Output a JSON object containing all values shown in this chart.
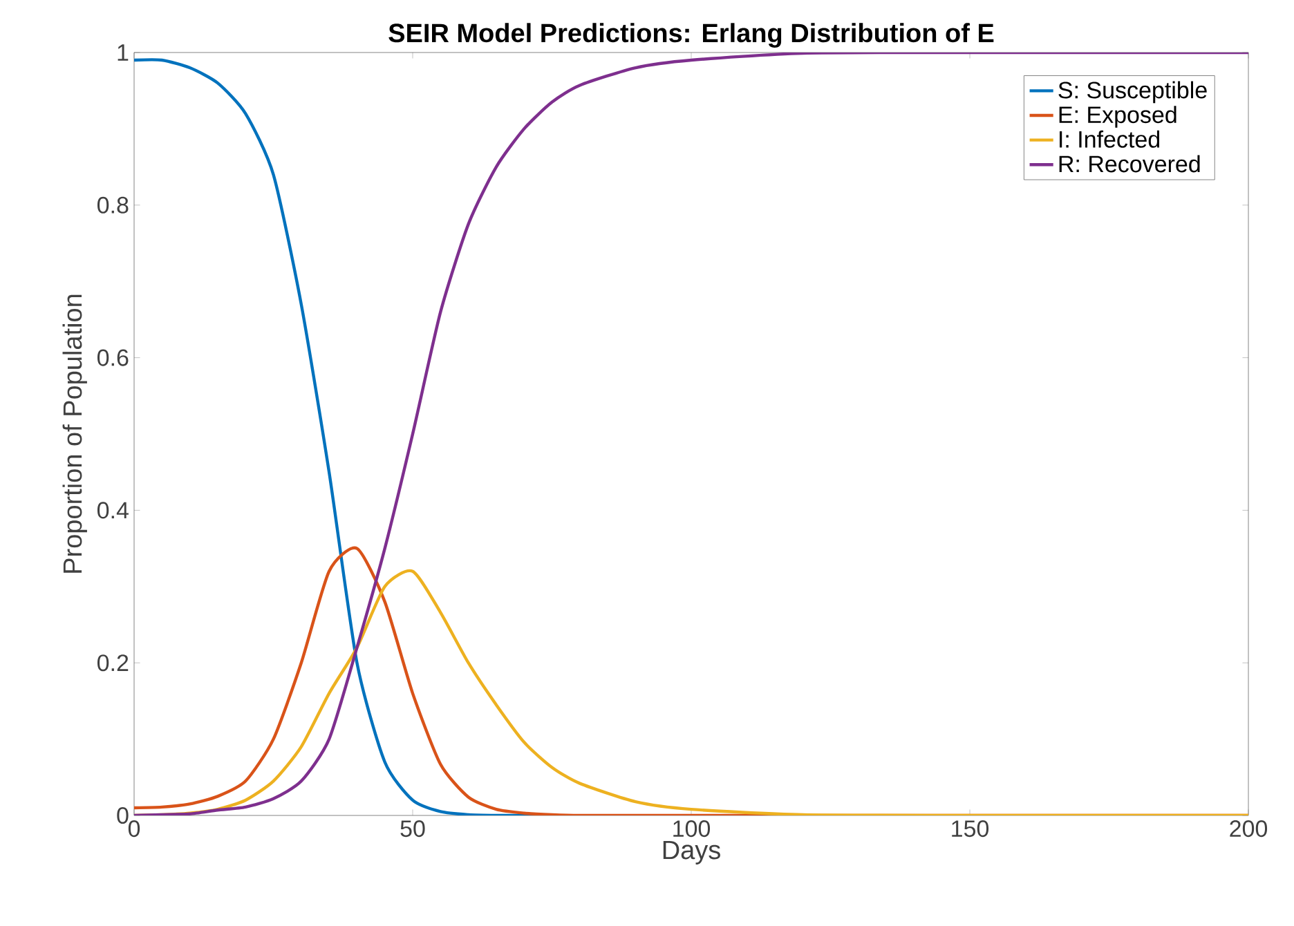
{
  "chart_data": {
    "type": "line",
    "title": "SEIR Model Predictions: Erlang Distribution of E",
    "xlabel": "Days",
    "ylabel": "Proportion of Population",
    "x": [
      0,
      5,
      10,
      15,
      20,
      25,
      30,
      35,
      40,
      45,
      50,
      55,
      60,
      65,
      70,
      75,
      80,
      90,
      100,
      120,
      150,
      200
    ],
    "xlim": [
      0,
      200
    ],
    "ylim": [
      0,
      1
    ],
    "xticks": [
      0,
      50,
      100,
      150,
      200
    ],
    "yticks": [
      0,
      0.2,
      0.4,
      0.6,
      0.8,
      1
    ],
    "legend": "top right",
    "grid": false,
    "marker": "none",
    "line_style": "solid",
    "series": [
      {
        "name": "S: Susceptible",
        "color": "#0072bd",
        "values": [
          0.99,
          0.99,
          0.98,
          0.96,
          0.92,
          0.84,
          0.67,
          0.45,
          0.2,
          0.07,
          0.02,
          0.005,
          0.001,
          0,
          0,
          0,
          null,
          null,
          null,
          null,
          null,
          null
        ]
      },
      {
        "name": "E: Exposed",
        "color": "#d95319",
        "values": [
          0.01,
          0.011,
          0.015,
          0.025,
          0.045,
          0.1,
          0.2,
          0.32,
          0.35,
          0.28,
          0.16,
          0.067,
          0.024,
          0.008,
          0.003,
          0.001,
          0,
          0,
          0,
          0,
          0,
          0
        ]
      },
      {
        "name": "I:  Infected",
        "color": "#edb120",
        "values": [
          0,
          0.001,
          0.003,
          0.008,
          0.02,
          0.045,
          0.09,
          0.16,
          0.22,
          0.3,
          0.32,
          0.266,
          0.2,
          0.145,
          0.096,
          0.063,
          0.042,
          0.018,
          0.008,
          0.001,
          0,
          0
        ]
      },
      {
        "name": "R: Recovered",
        "color": "#7e2f8e",
        "values": [
          0,
          0.001,
          0.002,
          0.007,
          0.011,
          0.022,
          0.045,
          0.1,
          0.22,
          0.35,
          0.5,
          0.66,
          0.775,
          0.85,
          0.9,
          0.935,
          0.957,
          0.98,
          0.99,
          0.999,
          1,
          1
        ]
      }
    ]
  }
}
